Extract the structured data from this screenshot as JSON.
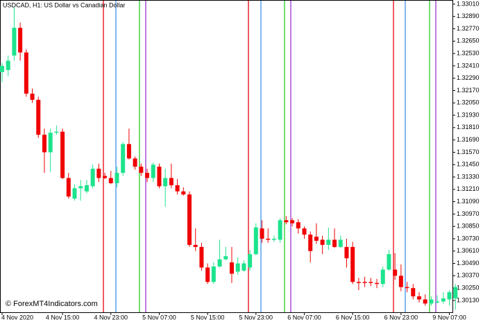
{
  "chart_data": {
    "type": "candlestick",
    "title": "USDCAD, H1:  US Dollar vs Canadian Dollar",
    "watermark": "© ForexMT4Indicators.com",
    "up_color": "#1de38d",
    "down_color": "#f00000",
    "categories": [
      "4 Nov 2020",
      null,
      null,
      null,
      null,
      null,
      null,
      null,
      null,
      null,
      "4 Nov 15:00",
      null,
      null,
      null,
      null,
      null,
      null,
      null,
      "4 Nov 23:00",
      null,
      null,
      null,
      null,
      null,
      null,
      null,
      "5 Nov 07:00",
      null,
      null,
      null,
      null,
      null,
      null,
      null,
      "5 Nov 15:00",
      null,
      null,
      null,
      null,
      null,
      null,
      null,
      "5 Nov 23:00",
      null,
      null,
      null,
      null,
      null,
      null,
      null,
      "6 Nov 07:00",
      null,
      null,
      null,
      null,
      null,
      null,
      null,
      "6 Nov 15:00",
      null,
      null,
      null,
      null,
      null,
      null,
      null,
      "6 Nov 23:00",
      null,
      null,
      null,
      null,
      null,
      null,
      null,
      "9 Nov 07:00",
      null
    ],
    "open": [
      1.3235,
      1.3237,
      1.3251,
      1.3278,
      1.3254,
      1.3214,
      1.3208,
      1.3174,
      1.3157,
      1.3176,
      1.3177,
      1.3132,
      1.3112,
      1.3122,
      1.3119,
      1.3124,
      1.3141,
      1.3134,
      1.3132,
      1.3127,
      1.3137,
      1.3165,
      1.3151,
      1.3143,
      1.3137,
      1.3132,
      1.3143,
      1.3124,
      1.3132,
      1.3125,
      1.3119,
      1.3116,
      1.3067,
      1.3065,
      1.3045,
      1.3031,
      1.3046,
      1.3053,
      1.305,
      1.3041,
      1.3042,
      1.3045,
      1.3058,
      1.3083,
      1.3073,
      1.3072,
      1.3072,
      1.3091,
      1.3091,
      1.3089,
      1.3083,
      1.3077,
      1.3075,
      1.3072,
      1.3067,
      1.3072,
      1.3065,
      1.3065,
      1.3065,
      1.3031,
      1.3031,
      1.3031,
      1.303,
      1.3029,
      1.3043,
      1.3043,
      1.3037,
      1.3026,
      1.3025,
      1.3017,
      1.3014,
      1.301,
      1.3011,
      1.3012,
      1.3014,
      1.3015
    ],
    "high": [
      1.3244,
      1.3251,
      1.3298,
      1.3283,
      1.3257,
      1.3219,
      1.3211,
      1.318,
      1.318,
      1.3183,
      1.318,
      1.3137,
      1.3126,
      1.313,
      1.313,
      1.3145,
      1.3146,
      1.3137,
      1.3139,
      1.3143,
      1.3167,
      1.318,
      1.3153,
      1.3146,
      1.3141,
      1.3147,
      1.3146,
      1.3141,
      1.3146,
      1.3131,
      1.3123,
      1.3119,
      1.3083,
      1.3069,
      1.3049,
      1.305,
      1.3072,
      1.3065,
      1.3065,
      1.3055,
      1.3052,
      1.3062,
      1.3088,
      1.3091,
      1.3083,
      1.3076,
      1.3093,
      1.3095,
      1.3093,
      1.3092,
      1.3085,
      1.308,
      1.3088,
      1.3076,
      1.3084,
      1.3083,
      1.3076,
      1.3073,
      1.307,
      1.3035,
      1.3036,
      1.3035,
      1.3034,
      1.3046,
      1.3062,
      1.3059,
      1.3048,
      1.3031,
      1.3029,
      1.3021,
      1.3019,
      1.3017,
      1.3018,
      1.3021,
      1.3023,
      1.3029
    ],
    "low": [
      1.3225,
      1.3231,
      1.3246,
      1.3246,
      1.3211,
      1.3205,
      1.3171,
      1.3137,
      1.3138,
      1.3174,
      1.3131,
      1.3112,
      1.311,
      1.311,
      1.3117,
      1.3122,
      1.3128,
      1.3131,
      1.3126,
      1.3123,
      1.3134,
      1.315,
      1.314,
      1.3134,
      1.3128,
      1.3128,
      1.3122,
      1.3104,
      1.3122,
      1.3116,
      1.3115,
      1.3065,
      1.3061,
      1.3042,
      1.3029,
      1.3029,
      1.3045,
      1.3052,
      1.303,
      1.3038,
      1.3041,
      1.3042,
      1.3057,
      1.3069,
      1.3069,
      1.307,
      1.3069,
      1.3087,
      1.3085,
      1.3078,
      1.3073,
      1.305,
      1.3068,
      1.3058,
      1.3062,
      1.3064,
      1.3064,
      1.3045,
      1.3029,
      1.3023,
      1.3026,
      1.3027,
      1.3025,
      1.3026,
      1.3042,
      1.3033,
      1.3022,
      1.3021,
      1.3014,
      1.3011,
      1.3008,
      1.3008,
      1.301,
      1.301,
      1.3008,
      1.3004
    ],
    "close": [
      1.3241,
      1.3246,
      1.3278,
      1.3254,
      1.3214,
      1.3208,
      1.3174,
      1.3157,
      1.3176,
      1.3177,
      1.3132,
      1.3114,
      1.3122,
      1.3124,
      1.3125,
      1.3141,
      1.3132,
      1.3132,
      1.3127,
      1.3137,
      1.3165,
      1.3151,
      1.3143,
      1.3137,
      1.3132,
      1.3145,
      1.3124,
      1.3132,
      1.3125,
      1.3119,
      1.3116,
      1.3067,
      1.3065,
      1.3045,
      1.3031,
      1.3046,
      1.3053,
      1.3056,
      1.3039,
      1.3049,
      1.3049,
      1.3058,
      1.3084,
      1.3073,
      1.3072,
      1.3073,
      1.3091,
      1.3089,
      1.3088,
      1.3083,
      1.3077,
      1.3061,
      1.3071,
      1.3067,
      1.3072,
      1.3065,
      1.3072,
      1.3054,
      1.3031,
      1.303,
      1.303,
      1.303,
      1.3029,
      1.3043,
      1.3058,
      1.3037,
      1.3026,
      1.3025,
      1.3017,
      1.3014,
      1.301,
      1.3014,
      1.3012,
      1.3015,
      1.3021,
      1.3026
    ],
    "ylim": [
      1.30015,
      1.3305
    ],
    "yticks": [
      {
        "value": 1.3301,
        "label": "1.33010"
      },
      {
        "value": 1.3289,
        "label": "1.32890"
      },
      {
        "value": 1.3277,
        "label": "1.32770"
      },
      {
        "value": 1.3265,
        "label": "1.32650"
      },
      {
        "value": 1.3253,
        "label": "1.32530"
      },
      {
        "value": 1.3241,
        "label": "1.32410"
      },
      {
        "value": 1.3229,
        "label": "1.32290"
      },
      {
        "value": 1.3217,
        "label": "1.32170"
      },
      {
        "value": 1.3205,
        "label": "1.32050"
      },
      {
        "value": 1.3193,
        "label": "1.31930"
      },
      {
        "value": 1.3181,
        "label": "1.31810"
      },
      {
        "value": 1.3169,
        "label": "1.31690"
      },
      {
        "value": 1.3157,
        "label": "1.31570"
      },
      {
        "value": 1.3145,
        "label": "1.31450"
      },
      {
        "value": 1.3133,
        "label": "1.31330"
      },
      {
        "value": 1.3121,
        "label": "1.31210"
      },
      {
        "value": 1.3109,
        "label": "1.31090"
      },
      {
        "value": 1.3097,
        "label": "1.30970"
      },
      {
        "value": 1.3085,
        "label": "1.30850"
      },
      {
        "value": 1.3073,
        "label": "1.30730"
      },
      {
        "value": 1.3061,
        "label": "1.30610"
      },
      {
        "value": 1.3049,
        "label": "1.30490"
      },
      {
        "value": 1.3037,
        "label": "1.30370"
      },
      {
        "value": 1.3025,
        "label": "1.30250"
      },
      {
        "value": 1.3013,
        "label": "1.30130"
      }
    ],
    "grid": false
  }
}
